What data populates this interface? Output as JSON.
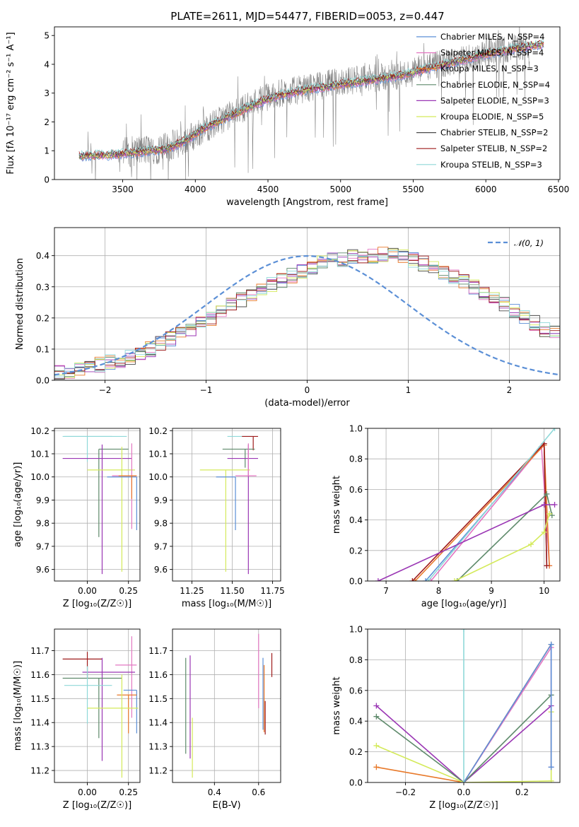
{
  "figure": {
    "title": "PLATE=2611, MJD=54477, FIBERID=0053, z=0.447"
  },
  "chart_data": [
    {
      "id": "spectrum",
      "type": "line",
      "xlabel": "wavelength [Angstrom, rest frame]",
      "ylabel": "Flux [fλ 10⁻¹⁷ erg cm⁻² s⁻¹ A⁻¹]",
      "xlim": [
        3030,
        6510
      ],
      "ylim": [
        0,
        5.3
      ],
      "xticks": [
        3500,
        4000,
        4500,
        5000,
        5500,
        6000,
        6500
      ],
      "yticks": [
        0,
        1,
        2,
        3,
        4,
        5
      ],
      "grid": false,
      "legend": "top-right",
      "observed": {
        "color": "#808080",
        "x": [
          3200,
          3500,
          3800,
          3950,
          4050,
          4150,
          4300,
          4450,
          4600,
          4800,
          5000,
          5200,
          5400,
          5600,
          5800,
          6000,
          6200,
          6300
        ],
        "y": [
          0.8,
          0.95,
          1.1,
          1.4,
          1.7,
          2.0,
          2.4,
          2.8,
          3.0,
          3.2,
          3.4,
          3.5,
          3.6,
          3.9,
          4.1,
          4.4,
          4.6,
          4.6
        ]
      },
      "model": {
        "x": [
          3200,
          3400,
          3600,
          3800,
          3950,
          4050,
          4150,
          4300,
          4450,
          4600,
          4800,
          5000,
          5200,
          5400,
          5600,
          5800,
          6000,
          6200,
          6400
        ],
        "y": [
          0.82,
          0.85,
          0.95,
          1.05,
          1.4,
          1.75,
          2.0,
          2.35,
          2.7,
          2.95,
          3.15,
          3.3,
          3.45,
          3.6,
          3.85,
          4.1,
          4.35,
          4.55,
          4.7
        ]
      },
      "series": [
        {
          "name": "Chabrier MILES, N_SSP=4",
          "color": "#5b8fd6"
        },
        {
          "name": "Salpeter MILES, N_SSP=4",
          "color": "#e377c2"
        },
        {
          "name": "Kroupa MILES, N_SSP=3",
          "color": "#e8792a"
        },
        {
          "name": "Chabrier ELODIE, N_SSP=4",
          "color": "#5e8a6b"
        },
        {
          "name": "Salpeter ELODIE, N_SSP=3",
          "color": "#9a36b4"
        },
        {
          "name": "Kroupa ELODIE, N_SSP=5",
          "color": "#d4ea5a"
        },
        {
          "name": "Chabrier STELIB, N_SSP=2",
          "color": "#4a4a4a"
        },
        {
          "name": "Salpeter STELIB, N_SSP=2",
          "color": "#9e1b1b"
        },
        {
          "name": "Kroupa STELIB, N_SSP=3",
          "color": "#8fd8d8"
        }
      ]
    },
    {
      "id": "residuals",
      "type": "histogram",
      "xlabel": "(data-model)/error",
      "ylabel": "Normed distribution",
      "xlim": [
        -2.5,
        2.5
      ],
      "ylim": [
        0,
        0.49
      ],
      "xticks": [
        -2,
        -1,
        0,
        1,
        2
      ],
      "yticks": [
        0.0,
        0.1,
        0.2,
        0.3,
        0.4
      ],
      "grid": true,
      "legend": "top-right",
      "legend_label": "𝒩(0, 1)",
      "normal_curve_color": "#5b8fd6",
      "bin_edges_start": -2.5,
      "bin_width": 0.1,
      "base_values": [
        0.025,
        0.03,
        0.04,
        0.045,
        0.05,
        0.06,
        0.065,
        0.075,
        0.085,
        0.1,
        0.12,
        0.135,
        0.15,
        0.165,
        0.18,
        0.2,
        0.22,
        0.24,
        0.26,
        0.27,
        0.29,
        0.305,
        0.32,
        0.335,
        0.35,
        0.365,
        0.375,
        0.385,
        0.39,
        0.395,
        0.39,
        0.4,
        0.405,
        0.4,
        0.395,
        0.385,
        0.375,
        0.36,
        0.345,
        0.33,
        0.315,
        0.3,
        0.28,
        0.265,
        0.245,
        0.225,
        0.205,
        0.185,
        0.165,
        0.15,
        0.13
      ]
    },
    {
      "id": "age-vs-Z",
      "type": "errorbar",
      "xlabel": "Z [log₁₀(Z/Z☉)]",
      "ylabel": "age  [log₁₀(age/yr)]",
      "xlim": [
        -0.2,
        0.32
      ],
      "ylim": [
        9.55,
        10.21
      ],
      "xticks": [
        0.0,
        0.25
      ],
      "yticks": [
        9.6,
        9.7,
        9.8,
        9.9,
        10.0,
        10.1,
        10.2
      ],
      "grid": true,
      "points": [
        {
          "x": 0.22,
          "y": 10.175,
          "xerr": [
            0.36,
            0.02
          ],
          "yerr": [
            0.0,
            0.0
          ],
          "color": "#8fd8d8"
        },
        {
          "x": 0.0,
          "y": 10.175,
          "xerr": [
            0.15,
            0.15
          ],
          "yerr": [
            0.11,
            0.0
          ],
          "color": "#8fd8d8"
        },
        {
          "x": 0.07,
          "y": 10.12,
          "xerr": [
            0.0,
            0.18
          ],
          "yerr": [
            0.38,
            0.0
          ],
          "color": "#5e8a6b"
        },
        {
          "x": 0.09,
          "y": 10.08,
          "xerr": [
            0.24,
            0.18
          ],
          "yerr": [
            0.5,
            0.06
          ],
          "color": "#9a36b4"
        },
        {
          "x": 0.21,
          "y": 10.03,
          "xerr": [
            0.21,
            0.08
          ],
          "yerr": [
            0.44,
            0.1
          ],
          "color": "#d4ea5a"
        },
        {
          "x": 0.27,
          "y": 10.005,
          "xerr": [
            0.12,
            0.03
          ],
          "yerr": [
            0.23,
            0.14
          ],
          "color": "#e377c2"
        },
        {
          "x": 0.3,
          "y": 10.0,
          "xerr": [
            0.18,
            0.0
          ],
          "yerr": [
            0.23,
            0.0
          ],
          "color": "#5b8fd6"
        },
        {
          "x": 0.27,
          "y": 10.005,
          "xerr": [
            0.08,
            0.03
          ],
          "yerr": [
            0.1,
            0.0
          ],
          "color": "#e8792a"
        }
      ]
    },
    {
      "id": "age-vs-mass",
      "type": "errorbar",
      "xlabel": "mass [log₁₀(M/M☉)]",
      "ylabel": "",
      "xlim": [
        11.13,
        11.8
      ],
      "ylim": [
        9.55,
        10.21
      ],
      "xticks": [
        11.25,
        11.5,
        11.75
      ],
      "yticks": [
        9.6,
        9.7,
        9.8,
        9.9,
        10.0,
        10.1,
        10.2
      ],
      "grid": true,
      "points": [
        {
          "x": 11.55,
          "y": 10.175,
          "xerr": [
            0.08,
            0.08
          ],
          "yerr": [
            0.0,
            0.0
          ],
          "color": "#8fd8d8"
        },
        {
          "x": 11.63,
          "y": 10.175,
          "xerr": [
            0.07,
            0.03
          ],
          "yerr": [
            0.06,
            0.0
          ],
          "color": "#9e1b1b"
        },
        {
          "x": 11.58,
          "y": 10.12,
          "xerr": [
            0.14,
            0.06
          ],
          "yerr": [
            0.08,
            0.0
          ],
          "color": "#5e8a6b"
        },
        {
          "x": 11.6,
          "y": 10.08,
          "xerr": [
            0.13,
            0.06
          ],
          "yerr": [
            0.5,
            0.06
          ],
          "color": "#9a36b4"
        },
        {
          "x": 11.46,
          "y": 10.03,
          "xerr": [
            0.16,
            0.15
          ],
          "yerr": [
            0.44,
            0.0
          ],
          "color": "#d4ea5a"
        },
        {
          "x": 11.52,
          "y": 10.0,
          "xerr": [
            0.12,
            0.0
          ],
          "yerr": [
            0.23,
            0.0
          ],
          "color": "#5b8fd6"
        },
        {
          "x": 11.6,
          "y": 10.005,
          "xerr": [
            0.08,
            0.05
          ],
          "yerr": [
            0.0,
            0.14
          ],
          "color": "#e377c2"
        }
      ]
    },
    {
      "id": "weight-vs-age",
      "type": "line",
      "xlabel": "age  [log₁₀(age/yr)]",
      "ylabel": "mass weight",
      "xlim": [
        6.65,
        10.3
      ],
      "ylim": [
        0,
        1.0
      ],
      "xticks": [
        7,
        8,
        9,
        10
      ],
      "yticks": [
        0.0,
        0.2,
        0.4,
        0.6,
        0.8,
        1.0
      ],
      "grid": true,
      "series": [
        {
          "color": "#5b8fd6",
          "x": [
            7.75,
            10.0,
            10.05
          ],
          "y": [
            0.0,
            0.9,
            0.1
          ]
        },
        {
          "color": "#e377c2",
          "x": [
            7.85,
            9.95,
            10.1
          ],
          "y": [
            0.0,
            0.88,
            0.1
          ]
        },
        {
          "color": "#e8792a",
          "x": [
            7.55,
            10.0,
            10.1
          ],
          "y": [
            0.0,
            0.89,
            0.1
          ]
        },
        {
          "color": "#9e1b1b",
          "x": [
            7.5,
            10.0,
            10.05
          ],
          "y": [
            0.0,
            0.9,
            0.1
          ]
        },
        {
          "color": "#8fd8d8",
          "x": [
            7.8,
            10.2
          ],
          "y": [
            0.0,
            1.0
          ]
        },
        {
          "color": "#5e8a6b",
          "x": [
            8.35,
            10.05,
            10.15
          ],
          "y": [
            0.0,
            0.57,
            0.43
          ]
        },
        {
          "color": "#9a36b4",
          "x": [
            6.85,
            10.0,
            10.2
          ],
          "y": [
            0.0,
            0.5,
            0.5
          ]
        },
        {
          "color": "#d4ea5a",
          "x": [
            8.3,
            9.75,
            10.0,
            10.1
          ],
          "y": [
            0.0,
            0.24,
            0.32,
            0.44
          ]
        }
      ]
    },
    {
      "id": "mass-vs-Z",
      "type": "errorbar",
      "xlabel": "Z [log₁₀(Z/Z☉)]",
      "ylabel": "mass [log₁₀(M/M☉)]",
      "xlim": [
        -0.2,
        0.32
      ],
      "ylim": [
        11.15,
        11.79
      ],
      "xticks": [
        0.0,
        0.25
      ],
      "yticks": [
        11.2,
        11.3,
        11.4,
        11.5,
        11.6,
        11.7
      ],
      "grid": true,
      "points": [
        {
          "x": 0.0,
          "y": 11.665,
          "xerr": [
            0.15,
            0.09
          ],
          "yerr": [
            0.08,
            0.03
          ],
          "color": "#9e1b1b"
        },
        {
          "x": 0.27,
          "y": 11.64,
          "xerr": [
            0.1,
            0.03
          ],
          "yerr": [
            0.22,
            0.12
          ],
          "color": "#e377c2"
        },
        {
          "x": 0.09,
          "y": 11.61,
          "xerr": [
            0.12,
            0.2
          ],
          "yerr": [
            0.37,
            0.06
          ],
          "color": "#9a36b4"
        },
        {
          "x": 0.07,
          "y": 11.585,
          "xerr": [
            0.22,
            0.14
          ],
          "yerr": [
            0.25,
            0.0
          ],
          "color": "#5e8a6b"
        },
        {
          "x": 0.0,
          "y": 11.555,
          "xerr": [
            0.14,
            0.15
          ],
          "yerr": [
            0.16,
            0.08
          ],
          "color": "#8fd8d8"
        },
        {
          "x": 0.3,
          "y": 11.535,
          "xerr": [
            0.08,
            0.0
          ],
          "yerr": [
            0.18,
            0.0
          ],
          "color": "#5b8fd6"
        },
        {
          "x": 0.25,
          "y": 11.515,
          "xerr": [
            0.07,
            0.05
          ],
          "yerr": [
            0.16,
            0.0
          ],
          "color": "#e8792a"
        },
        {
          "x": 0.21,
          "y": 11.46,
          "xerr": [
            0.21,
            0.1
          ],
          "yerr": [
            0.29,
            0.14
          ],
          "color": "#d4ea5a"
        }
      ]
    },
    {
      "id": "mass-vs-EBV",
      "type": "errorbar",
      "xlabel": "E(B-V)",
      "ylabel": "",
      "xlim": [
        0.21,
        0.7
      ],
      "ylim": [
        11.15,
        11.79
      ],
      "xticks": [
        0.4,
        0.6
      ],
      "yticks": [
        11.2,
        11.3,
        11.4,
        11.5,
        11.6,
        11.7
      ],
      "grid": true,
      "points": [
        {
          "x": 0.27,
          "y": 11.47,
          "xerr": [
            0,
            0
          ],
          "yerr": [
            0.2,
            0.2
          ],
          "color": "#5e8a6b"
        },
        {
          "x": 0.29,
          "y": 11.45,
          "xerr": [
            0,
            0
          ],
          "yerr": [
            0.2,
            0.23
          ],
          "color": "#9a36b4"
        },
        {
          "x": 0.3,
          "y": 11.42,
          "xerr": [
            0,
            0
          ],
          "yerr": [
            0.25,
            0.0
          ],
          "color": "#d4ea5a"
        },
        {
          "x": 0.6,
          "y": 11.6,
          "xerr": [
            0,
            0
          ],
          "yerr": [
            0.14,
            0.17
          ],
          "color": "#e377c2"
        },
        {
          "x": 0.62,
          "y": 11.5,
          "xerr": [
            0,
            0
          ],
          "yerr": [
            0.13,
            0.17
          ],
          "color": "#5b8fd6"
        },
        {
          "x": 0.625,
          "y": 11.5,
          "xerr": [
            0,
            0
          ],
          "yerr": [
            0.14,
            0.14
          ],
          "color": "#e8792a"
        },
        {
          "x": 0.63,
          "y": 11.49,
          "xerr": [
            0,
            0
          ],
          "yerr": [
            0.14,
            0.0
          ],
          "color": "#9e1b1b"
        },
        {
          "x": 0.66,
          "y": 11.59,
          "xerr": [
            0,
            0
          ],
          "yerr": [
            0.0,
            0.1
          ],
          "color": "#9e1b1b"
        }
      ]
    },
    {
      "id": "weight-vs-Z",
      "type": "line",
      "xlabel": "Z [log₁₀(Z/Z☉)]",
      "ylabel": "mass weight",
      "xlim": [
        -0.33,
        0.33
      ],
      "ylim": [
        0,
        1.0
      ],
      "xticks": [
        -0.2,
        0.0,
        0.2
      ],
      "yticks": [
        0.0,
        0.2,
        0.4,
        0.6,
        0.8,
        1.0
      ],
      "grid": true,
      "series": [
        {
          "color": "#e8792a",
          "x": [
            -0.3,
            0.0,
            0.3
          ],
          "y": [
            0.1,
            0.0,
            0.9
          ]
        },
        {
          "color": "#9a36b4",
          "x": [
            -0.3,
            0.0,
            0.3
          ],
          "y": [
            0.5,
            0.0,
            0.5
          ]
        },
        {
          "color": "#5e8a6b",
          "x": [
            -0.3,
            0.0,
            0.3
          ],
          "y": [
            0.43,
            0.0,
            0.57
          ]
        },
        {
          "color": "#d4ea5a",
          "x": [
            -0.3,
            0.0,
            0.3,
            0.3
          ],
          "y": [
            0.24,
            0.0,
            0.01,
            0.46
          ]
        },
        {
          "color": "#e377c2",
          "x": [
            0.0,
            0.3,
            0.3
          ],
          "y": [
            0.0,
            0.88,
            0.1
          ]
        },
        {
          "color": "#5b8fd6",
          "x": [
            0.0,
            0.3,
            0.3
          ],
          "y": [
            0.0,
            0.9,
            0.1
          ]
        },
        {
          "color": "#8fd8d8",
          "x": [
            0.0,
            0.0
          ],
          "y": [
            0.0,
            1.0
          ]
        }
      ]
    }
  ]
}
